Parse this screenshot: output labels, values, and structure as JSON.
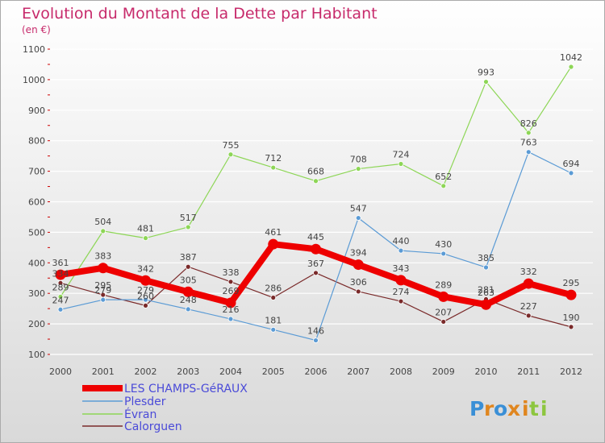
{
  "chart_data": {
    "type": "line",
    "title": "Evolution du Montant de la Dette par Habitant",
    "subtitle": "(en €)",
    "xlabel": "",
    "ylabel": "",
    "x": [
      "2000",
      "2001",
      "2002",
      "2003",
      "2004",
      "2005",
      "2006",
      "2007",
      "2008",
      "2009",
      "2010",
      "2011",
      "2012"
    ],
    "ylim": [
      100,
      1100
    ],
    "yticks": [
      100,
      200,
      300,
      400,
      500,
      600,
      700,
      800,
      900,
      1000,
      1100
    ],
    "grid": true,
    "legend_position": "bottom-left",
    "series": [
      {
        "name": "Calorguen",
        "color": "#7a2a2a",
        "width": 1.2,
        "values": [
          334,
          295,
          260,
          387,
          338,
          286,
          367,
          306,
          274,
          207,
          281,
          227,
          190
        ]
      },
      {
        "name": "Plesder",
        "color": "#5b9bd5",
        "width": 1.2,
        "values": [
          247,
          279,
          279,
          248,
          216,
          181,
          146,
          547,
          440,
          430,
          385,
          763,
          694
        ]
      },
      {
        "name": "Évran",
        "color": "#8dd656",
        "width": 1.2,
        "values": [
          289,
          504,
          481,
          517,
          755,
          712,
          668,
          708,
          724,
          652,
          993,
          826,
          1042
        ]
      },
      {
        "name": "LES CHAMPS-GéRAUX",
        "color": "#ee0000",
        "width": 8,
        "values": [
          361,
          383,
          342,
          305,
          269,
          461,
          445,
          394,
          343,
          289,
          263,
          332,
          295
        ]
      }
    ],
    "legend": [
      "LES CHAMPS-GéRAUX",
      "Plesder",
      "Évran",
      "Calorguen"
    ],
    "colors": {
      "background_top": "#ffffff",
      "background_bottom": "#dcdcdc",
      "title": "#c72a6b",
      "label": "#444444",
      "legend_text": "#4b4bd8",
      "grid": "#ffffff"
    }
  },
  "watermark": {
    "text": "Proxiti"
  }
}
